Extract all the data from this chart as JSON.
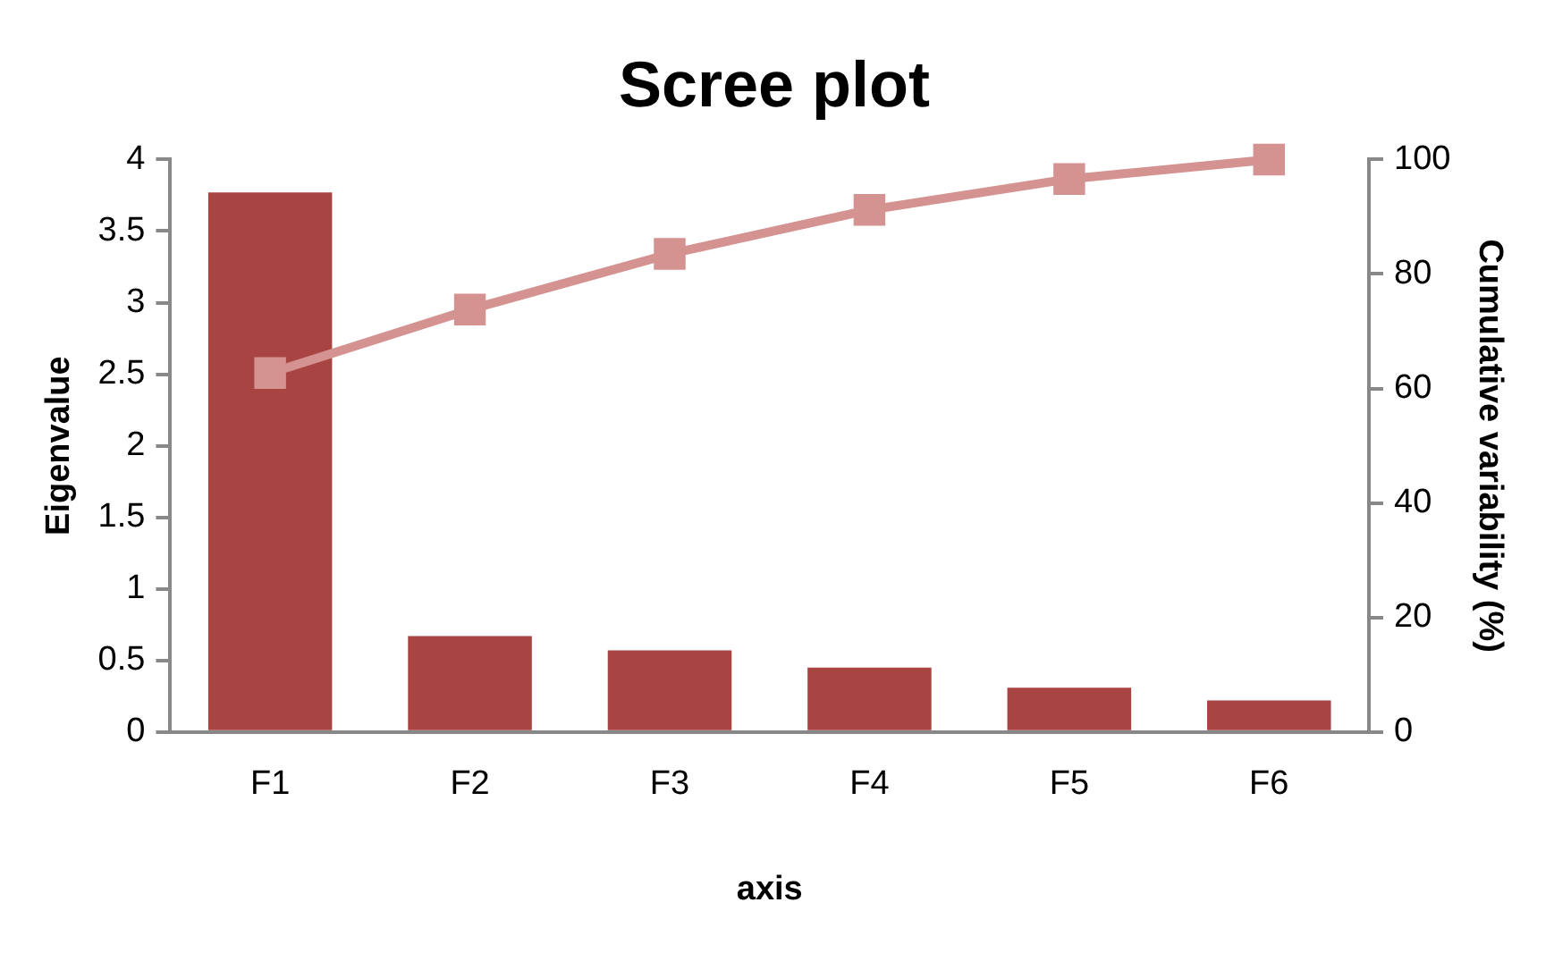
{
  "chart_data": {
    "type": "bar",
    "title": "Scree plot",
    "xlabel": "axis",
    "ylabel": "Eigenvalue",
    "y2label": "Cumulative variability (%)",
    "categories": [
      "F1",
      "F2",
      "F3",
      "F4",
      "F5",
      "F6"
    ],
    "series": [
      {
        "color": "#a84542",
        "values": [
          3.77,
          0.67,
          0.57,
          0.45,
          0.31,
          0.22
        ]
      },
      {
        "type": "line",
        "axis": "y2",
        "color": "#d49290",
        "values": [
          62.7,
          73.8,
          83.5,
          91.2,
          96.6,
          100
        ]
      }
    ],
    "ylim": [
      0,
      4
    ],
    "yticks": [
      0,
      0.5,
      1,
      1.5,
      2,
      2.5,
      3,
      3.5,
      4
    ],
    "y2lim": [
      0,
      100
    ],
    "y2ticks": [
      0,
      20,
      40,
      60,
      80,
      100
    ],
    "grid": false,
    "legend": false,
    "marker": "square",
    "line_style": "solid"
  }
}
